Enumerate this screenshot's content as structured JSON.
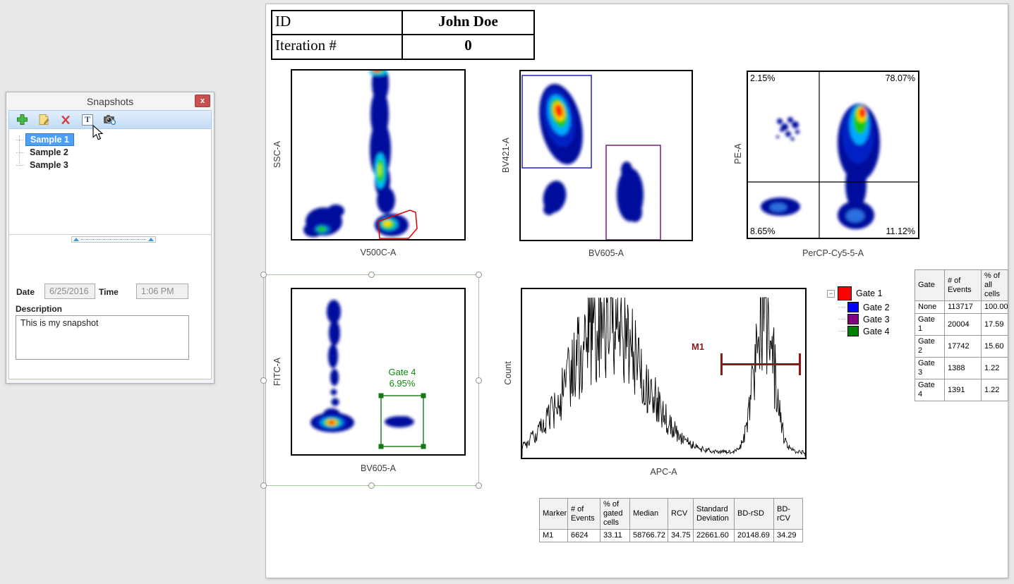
{
  "snapshots_panel": {
    "title": "Snapshots",
    "close_label": "x",
    "toolbar": {
      "buttons": [
        {
          "name": "add",
          "icon": "plus-icon"
        },
        {
          "name": "edit",
          "icon": "note-icon"
        },
        {
          "name": "delete",
          "icon": "delete-x-icon"
        },
        {
          "name": "text",
          "icon": "text-icon",
          "glyph": "T"
        },
        {
          "name": "snapshot",
          "icon": "camera-icon"
        }
      ]
    },
    "samples": [
      "Sample 1",
      "Sample 2",
      "Sample 3"
    ],
    "selected_sample": "Sample 1",
    "date_label": "Date",
    "date_value": "6/25/2016",
    "time_label": "Time",
    "time_value": "1:06 PM",
    "description_label": "Description",
    "description_value": "This is my snapshot"
  },
  "id_table": {
    "rows": [
      {
        "label": "ID",
        "value": "John Doe"
      },
      {
        "label": "Iteration #",
        "value": "0"
      }
    ]
  },
  "chart_data": [
    {
      "type": "density",
      "xlabel": "V500C-A",
      "ylabel": "SSC-A",
      "gates": [
        {
          "name": "Gate 1",
          "color": "#e00000",
          "shape": "polygon",
          "location": "bottom-center population"
        }
      ]
    },
    {
      "type": "density",
      "xlabel": "BV605-A",
      "ylabel": "BV421-A",
      "gates": [
        {
          "name": "Gate 2",
          "color": "#2222cc",
          "shape": "rect",
          "location": "upper-left population"
        },
        {
          "name": "Gate 3",
          "color": "#7b1f7b",
          "shape": "rect",
          "location": "right population"
        }
      ]
    },
    {
      "type": "density",
      "xlabel": "PerCP-Cy5-5-A",
      "ylabel": "PE-A",
      "quadrants": {
        "UL": "2.15%",
        "UR": "78.07%",
        "LL": "8.65%",
        "LR": "11.12%"
      }
    },
    {
      "type": "density",
      "xlabel": "BV605-A",
      "ylabel": "FITC-A",
      "selected": true,
      "gates": [
        {
          "name": "Gate 4",
          "percent": "6.95%",
          "color": "#157815",
          "shape": "rect",
          "location": "small right population"
        }
      ]
    },
    {
      "type": "histogram",
      "xlabel": "APC-A",
      "ylabel": "Count",
      "marker": {
        "name": "M1",
        "color": "#8b1a1a",
        "x_start_frac": 0.7,
        "x_end_frac": 0.975
      },
      "peaks": [
        {
          "center": 0.3,
          "width": 0.125,
          "height": 0.9
        },
        {
          "center": 0.855,
          "width": 0.034,
          "height": 1.0
        }
      ]
    }
  ],
  "legend": {
    "items": [
      {
        "label": "Gate 1",
        "color": "#ff0000"
      },
      {
        "label": "Gate 2",
        "color": "#0000ff"
      },
      {
        "label": "Gate 3",
        "color": "#800080"
      },
      {
        "label": "Gate 4",
        "color": "#008000"
      }
    ]
  },
  "gate_table": {
    "headers": [
      "Gate",
      "# of Events",
      "% of all cells"
    ],
    "rows": [
      [
        "None",
        "113717",
        "100.00"
      ],
      [
        "Gate 1",
        "20004",
        "17.59"
      ],
      [
        "Gate 2",
        "17742",
        "15.60"
      ],
      [
        "Gate 3",
        "1388",
        "1.22"
      ],
      [
        "Gate 4",
        "1391",
        "1.22"
      ]
    ]
  },
  "marker_table": {
    "headers": [
      "Marker",
      "# of Events",
      "% of gated cells",
      "Median",
      "RCV",
      "Standard Deviation",
      "BD-rSD",
      "BD-rCV"
    ],
    "rows": [
      [
        "M1",
        "6624",
        "33.11",
        "58766.72",
        "34.75",
        "22661.60",
        "20148.69",
        "34.29"
      ]
    ]
  }
}
